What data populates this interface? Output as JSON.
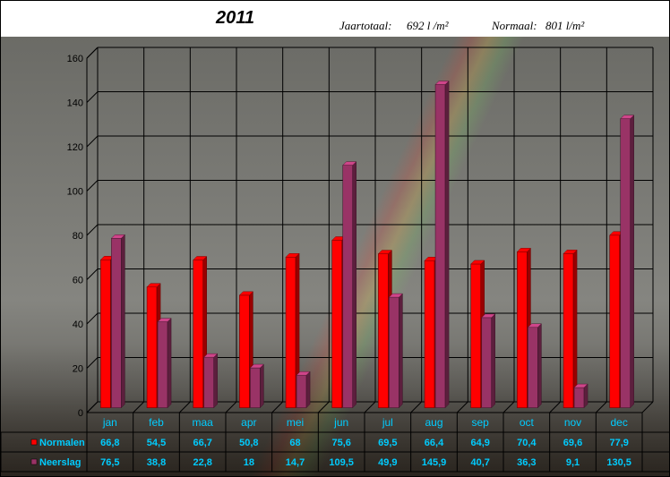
{
  "header": {
    "title": "2011",
    "jaartotaal_label": "Jaartotaal:",
    "jaartotaal_value": "692 l /m²",
    "normaal_label": "Normaal:",
    "normaal_value": "801 l/m²"
  },
  "chart_data": {
    "type": "bar",
    "title": "2011",
    "categories": [
      "jan",
      "feb",
      "maa",
      "apr",
      "mei",
      "jun",
      "jul",
      "aug",
      "sep",
      "oct",
      "nov",
      "dec"
    ],
    "ylim": [
      0,
      160
    ],
    "yticks": [
      0,
      20,
      40,
      60,
      80,
      100,
      120,
      140,
      160
    ],
    "grid": true,
    "legend": "bottom-left table",
    "series": [
      {
        "name": "Normalen",
        "color": "#ff0000",
        "values": [
          66.8,
          54.5,
          66.7,
          50.8,
          68,
          75.6,
          69.5,
          66.4,
          64.9,
          70.4,
          69.6,
          77.9
        ],
        "labels": [
          "66,8",
          "54,5",
          "66,7",
          "50,8",
          "68",
          "75,6",
          "69,5",
          "66,4",
          "64,9",
          "70,4",
          "69,6",
          "77,9"
        ]
      },
      {
        "name": "Neerslag",
        "color": "#993366",
        "values": [
          76.5,
          38.8,
          22.8,
          18,
          14.7,
          109.5,
          49.9,
          145.9,
          40.7,
          36.3,
          9.1,
          130.5
        ],
        "labels": [
          "76,5",
          "38,8",
          "22,8",
          "18",
          "14,7",
          "109,5",
          "49,9",
          "145,9",
          "40,7",
          "36,3",
          "9,1",
          "130,5"
        ]
      }
    ]
  }
}
